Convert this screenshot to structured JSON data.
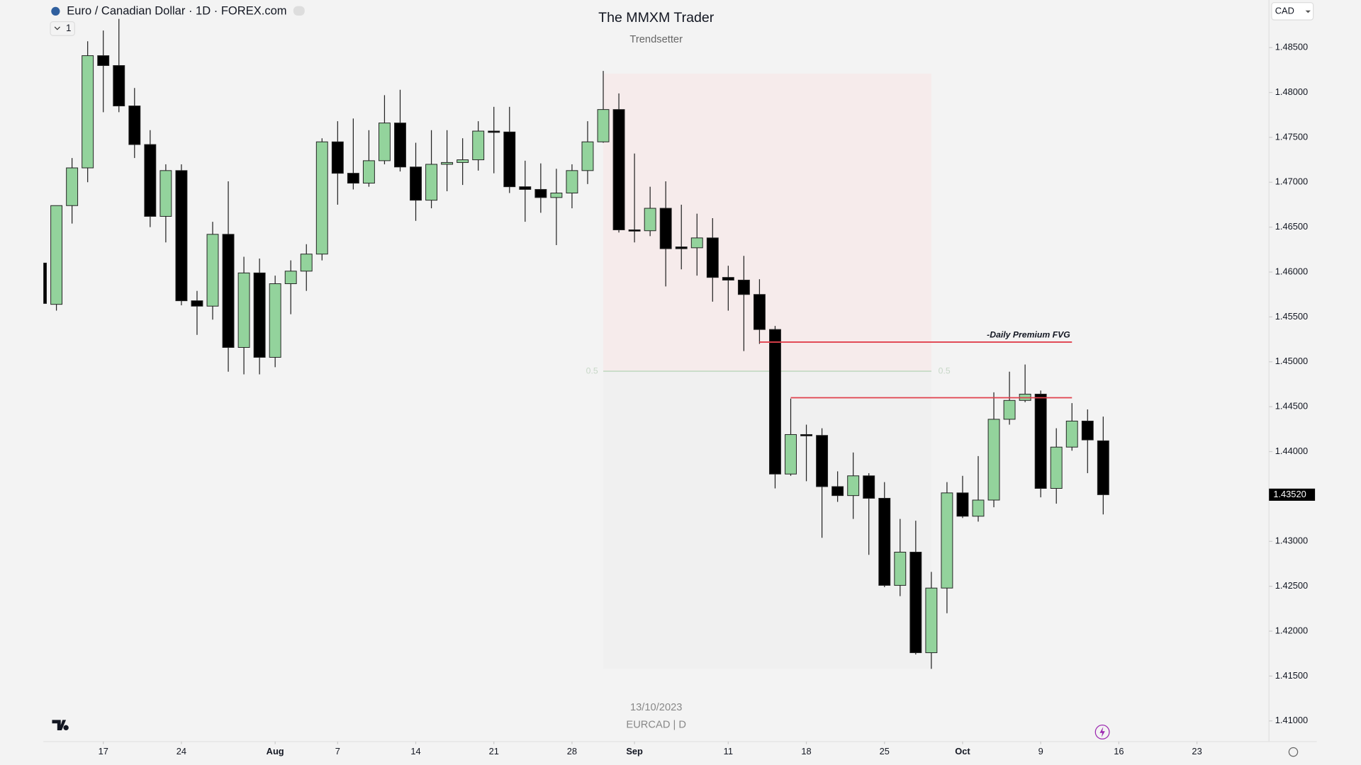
{
  "chart_data": {
    "type": "candlestick",
    "symbol_title": "Euro / Canadian Dollar · 1D · FOREX.com",
    "indicator_count": "1",
    "title": "The MMXM Trader",
    "subtitle": "Trendsetter",
    "currency": "CAD",
    "date_label": "13/10/2023",
    "symbol_label": "EURCAD | D",
    "up_color": "#93d39c",
    "down_color": "#000000",
    "x": [
      "2023-07-11",
      "2023-07-12",
      "2023-07-13",
      "2023-07-14",
      "2023-07-17",
      "2023-07-18",
      "2023-07-19",
      "2023-07-20",
      "2023-07-21",
      "2023-07-24",
      "2023-07-25",
      "2023-07-26",
      "2023-07-27",
      "2023-07-28",
      "2023-07-31",
      "2023-08-01",
      "2023-08-02",
      "2023-08-03",
      "2023-08-04",
      "2023-08-07",
      "2023-08-08",
      "2023-08-09",
      "2023-08-10",
      "2023-08-11",
      "2023-08-14",
      "2023-08-15",
      "2023-08-16",
      "2023-08-17",
      "2023-08-18",
      "2023-08-21",
      "2023-08-22",
      "2023-08-23",
      "2023-08-24",
      "2023-08-25",
      "2023-08-28",
      "2023-08-29",
      "2023-08-30",
      "2023-08-31",
      "2023-09-01",
      "2023-09-04",
      "2023-09-05",
      "2023-09-06",
      "2023-09-07",
      "2023-09-08",
      "2023-09-11",
      "2023-09-12",
      "2023-09-13",
      "2023-09-14",
      "2023-09-15",
      "2023-09-18",
      "2023-09-19",
      "2023-09-20",
      "2023-09-21",
      "2023-09-22",
      "2023-09-25",
      "2023-09-26",
      "2023-09-27",
      "2023-09-28",
      "2023-09-29",
      "2023-10-02",
      "2023-10-03",
      "2023-10-04",
      "2023-10-05",
      "2023-10-06",
      "2023-10-09",
      "2023-10-10",
      "2023-10-11",
      "2023-10-12",
      "2023-10-13"
    ],
    "open": [
      1.461,
      1.4564,
      1.4674,
      1.4716,
      1.4841,
      1.483,
      1.4785,
      1.4742,
      1.4662,
      1.4713,
      1.4568,
      1.4562,
      1.4642,
      1.4516,
      1.4599,
      1.4505,
      1.4587,
      1.4601,
      1.462,
      1.4745,
      1.471,
      1.4699,
      1.4724,
      1.4766,
      1.4717,
      1.468,
      1.472,
      1.4722,
      1.4725,
      1.4757,
      1.4756,
      1.4695,
      1.4692,
      1.4683,
      1.4688,
      1.4713,
      1.4745,
      1.4781,
      1.4647,
      1.4646,
      1.4671,
      1.4628,
      1.4627,
      1.4638,
      1.4594,
      1.4591,
      1.4575,
      1.4536,
      1.4375,
      1.4419,
      1.4418,
      1.4361,
      1.4351,
      1.4373,
      1.4348,
      1.4251,
      1.4288,
      1.4176,
      1.4248,
      1.4354,
      1.4328,
      1.4346,
      1.4436,
      1.4457,
      1.4464,
      1.4359,
      1.4405,
      1.4434,
      1.4412
    ],
    "high": [
      1.461,
      1.4674,
      1.4727,
      1.4857,
      1.4869,
      1.4882,
      1.4805,
      1.4758,
      1.472,
      1.472,
      1.4579,
      1.4656,
      1.4701,
      1.4617,
      1.4615,
      1.4596,
      1.4613,
      1.4631,
      1.4749,
      1.4768,
      1.4771,
      1.4758,
      1.4797,
      1.4803,
      1.4744,
      1.4758,
      1.4758,
      1.4749,
      1.4768,
      1.4784,
      1.4784,
      1.4724,
      1.4721,
      1.4715,
      1.472,
      1.4768,
      1.4824,
      1.4799,
      1.4732,
      1.4695,
      1.4701,
      1.4675,
      1.4665,
      1.466,
      1.4607,
      1.4618,
      1.4592,
      1.454,
      1.4459,
      1.443,
      1.4426,
      1.4378,
      1.4399,
      1.4376,
      1.4366,
      1.4325,
      1.4323,
      1.4266,
      1.4366,
      1.4373,
      1.4395,
      1.4466,
      1.4489,
      1.4497,
      1.4468,
      1.4426,
      1.4454,
      1.4447,
      1.4439
    ],
    "low": [
      1.4565,
      1.4557,
      1.4654,
      1.47,
      1.4778,
      1.4778,
      1.4727,
      1.465,
      1.4633,
      1.4563,
      1.453,
      1.4547,
      1.4489,
      1.4486,
      1.4486,
      1.4494,
      1.4553,
      1.4579,
      1.4613,
      1.4675,
      1.4692,
      1.4695,
      1.472,
      1.4712,
      1.4657,
      1.4671,
      1.469,
      1.4697,
      1.4713,
      1.471,
      1.4688,
      1.4656,
      1.4666,
      1.463,
      1.4671,
      1.4698,
      1.4744,
      1.4644,
      1.4633,
      1.464,
      1.4584,
      1.4603,
      1.4596,
      1.4567,
      1.4557,
      1.4512,
      1.452,
      1.4359,
      1.4373,
      1.4367,
      1.4304,
      1.4344,
      1.4325,
      1.4285,
      1.4249,
      1.4239,
      1.4174,
      1.4158,
      1.422,
      1.4326,
      1.4322,
      1.4338,
      1.443,
      1.4455,
      1.4349,
      1.4342,
      1.4401,
      1.4376,
      1.433
    ],
    "close": [
      1.4565,
      1.4674,
      1.4716,
      1.4841,
      1.483,
      1.4785,
      1.4742,
      1.4662,
      1.4713,
      1.4568,
      1.4562,
      1.4642,
      1.4516,
      1.4599,
      1.4505,
      1.4587,
      1.4601,
      1.462,
      1.4745,
      1.471,
      1.4699,
      1.4724,
      1.4766,
      1.4717,
      1.468,
      1.472,
      1.4722,
      1.4725,
      1.4757,
      1.4756,
      1.4695,
      1.4692,
      1.4683,
      1.4688,
      1.4713,
      1.4745,
      1.4781,
      1.4647,
      1.4646,
      1.4671,
      1.4626,
      1.4626,
      1.4638,
      1.4594,
      1.4591,
      1.4575,
      1.4536,
      1.4375,
      1.4419,
      1.4418,
      1.4361,
      1.4351,
      1.4373,
      1.4348,
      1.4251,
      1.4288,
      1.4176,
      1.4248,
      1.4354,
      1.4328,
      1.4346,
      1.4436,
      1.4457,
      1.4464,
      1.4359,
      1.4405,
      1.4434,
      1.4413,
      1.4352
    ],
    "last_price": {
      "value": 1.4352,
      "label": "1.43520"
    },
    "ylim": [
      1.4077,
      1.4903
    ],
    "yticks": [
      {
        "value": 1.485,
        "label": "1.48500"
      },
      {
        "value": 1.48,
        "label": "1.48000"
      },
      {
        "value": 1.475,
        "label": "1.47500"
      },
      {
        "value": 1.47,
        "label": "1.47000"
      },
      {
        "value": 1.465,
        "label": "1.46500"
      },
      {
        "value": 1.46,
        "label": "1.46000"
      },
      {
        "value": 1.455,
        "label": "1.45500"
      },
      {
        "value": 1.45,
        "label": "1.45000"
      },
      {
        "value": 1.445,
        "label": "1.44500"
      },
      {
        "value": 1.44,
        "label": "1.44000"
      },
      {
        "value": 1.435,
        "label": "1.43500"
      },
      {
        "value": 1.43,
        "label": "1.43000"
      },
      {
        "value": 1.425,
        "label": "1.42500"
      },
      {
        "value": 1.42,
        "label": "1.42000"
      },
      {
        "value": 1.415,
        "label": "1.41500"
      },
      {
        "value": 1.41,
        "label": "1.41000"
      }
    ],
    "xticks": [
      {
        "value": "2023-07-17",
        "label": "17"
      },
      {
        "value": "2023-07-24",
        "label": "24"
      },
      {
        "value": "2023-08-01",
        "label": "Aug"
      },
      {
        "value": "2023-08-07",
        "label": "7"
      },
      {
        "value": "2023-08-14",
        "label": "14"
      },
      {
        "value": "2023-08-21",
        "label": "21"
      },
      {
        "value": "2023-08-28",
        "label": "28"
      },
      {
        "value": "2023-09-01",
        "label": "Sep"
      },
      {
        "value": "2023-09-11",
        "label": "11"
      },
      {
        "value": "2023-09-18",
        "label": "18"
      },
      {
        "value": "2023-09-25",
        "label": "25"
      },
      {
        "value": "2023-10-02",
        "label": "Oct"
      },
      {
        "value": "2023-10-09",
        "label": "9"
      },
      {
        "value": "2023-10-16",
        "label": "16"
      },
      {
        "value": "2023-10-23",
        "label": "23"
      }
    ],
    "range_box": {
      "start": "2023-08-30",
      "end": "2023-09-28",
      "high": 1.4821,
      "low": 1.4158
    },
    "fib_level": 0.5,
    "fvg_label": "-Daily Premium FVG",
    "fvg_lines": [
      {
        "start": "2023-09-13",
        "end": "2023-10-11",
        "price": 1.4522,
        "color": "#e0404c"
      },
      {
        "start": "2023-09-15",
        "end": "2023-10-11",
        "price": 1.446,
        "color": "#e0404c"
      }
    ]
  }
}
